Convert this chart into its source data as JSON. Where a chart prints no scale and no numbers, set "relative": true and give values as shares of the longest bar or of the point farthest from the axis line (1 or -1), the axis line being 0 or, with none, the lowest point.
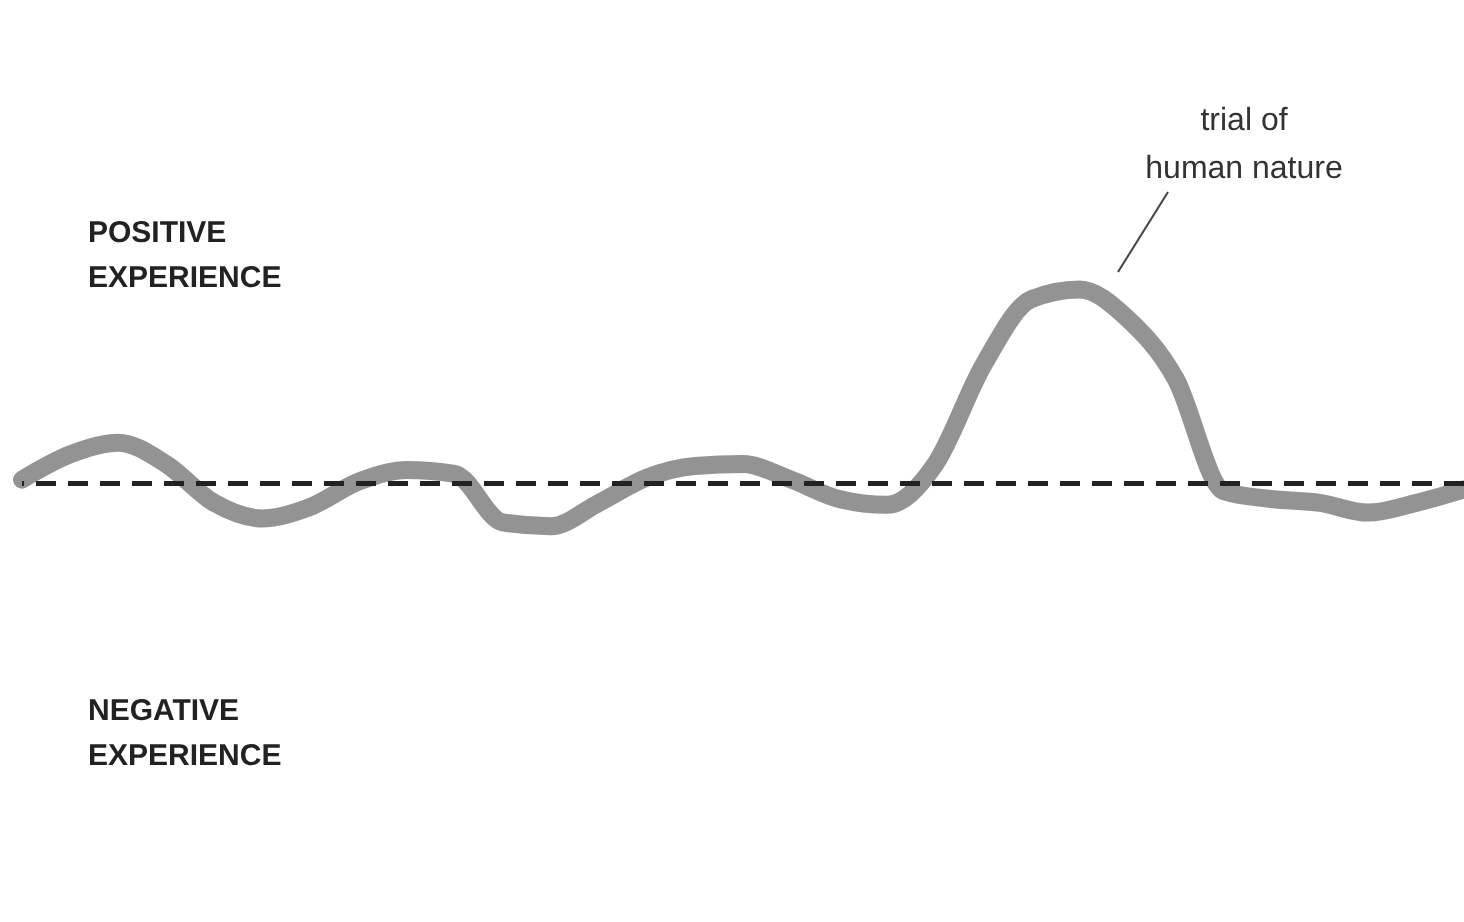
{
  "chart_data": {
    "type": "line",
    "relative": true,
    "categories": [
      null,
      null,
      null,
      null,
      null,
      null,
      null,
      null,
      null,
      null,
      null,
      null,
      null,
      null,
      null,
      null,
      null,
      null,
      null,
      null,
      null,
      null,
      null,
      null,
      null,
      null,
      null,
      null,
      null,
      null,
      null
    ],
    "series": [
      {
        "color": "#939393",
        "values": [
          0.02,
          0.15,
          0.21,
          0.1,
          -0.1,
          -0.18,
          -0.12,
          0.01,
          0.07,
          0.05,
          -0.2,
          -0.22,
          -0.1,
          0.03,
          0.09,
          0.1,
          0.02,
          -0.08,
          -0.11,
          0.1,
          0.61,
          0.95,
          1,
          0.85,
          0.54,
          -0.04,
          -0.08,
          -0.1,
          -0.15,
          -0.1,
          -0.03
        ]
      }
    ],
    "ref_lines": [
      {
        "axis": "y",
        "value": 0,
        "color": "#222222",
        "line_style": "dashed"
      }
    ],
    "annotations": [
      "POSITIVE\nEXPERIENCE",
      "NEGATIVE\nEXPERIENCE",
      "trial of\nhuman nature"
    ],
    "line_style": "solid"
  }
}
